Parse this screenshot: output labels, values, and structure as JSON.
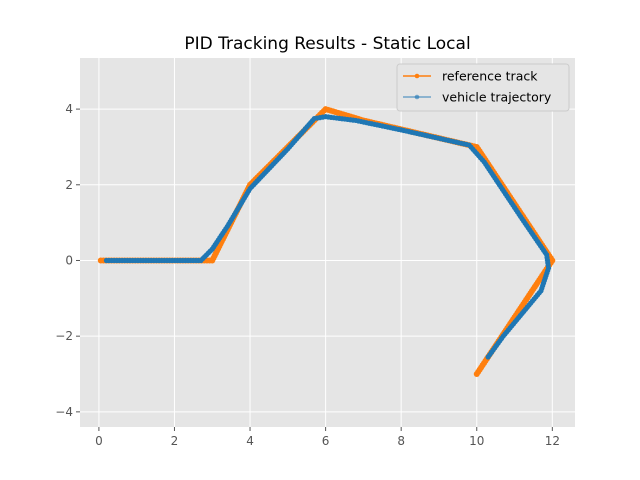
{
  "chart_data": {
    "type": "line",
    "title": "PID Tracking Results - Static Local",
    "xlabel": "",
    "ylabel": "",
    "xlim": [
      -0.5,
      12.6
    ],
    "ylim": [
      -4.4,
      5.35
    ],
    "xticks": [
      0,
      2,
      4,
      6,
      8,
      10,
      12
    ],
    "yticks": [
      -4,
      -2,
      0,
      2,
      4
    ],
    "xtick_labels": [
      "0",
      "2",
      "4",
      "6",
      "8",
      "10",
      "12"
    ],
    "ytick_labels": [
      "−4",
      "−2",
      "0",
      "2",
      "4"
    ],
    "grid": true,
    "legend_position": "top-right",
    "background": "#e5e5e5",
    "series": [
      {
        "name": "reference track",
        "color": "#ff7f0e",
        "marker": "o",
        "x": [
          0.05,
          3.0,
          4.0,
          6.0,
          7.0,
          10.0,
          12.0,
          10.0
        ],
        "y": [
          0.0,
          0.0,
          2.0,
          4.0,
          3.7,
          3.0,
          0.0,
          -3.0
        ]
      },
      {
        "name": "vehicle trajectory",
        "color": "#1f77b4",
        "marker": "o",
        "x": [
          0.2,
          2.7,
          3.0,
          3.4,
          4.0,
          5.0,
          5.7,
          6.0,
          6.8,
          8.0,
          9.8,
          10.2,
          10.6,
          11.2,
          11.85,
          11.9,
          11.7,
          11.2,
          10.7,
          10.3
        ],
        "y": [
          0.0,
          0.0,
          0.3,
          0.9,
          1.9,
          2.95,
          3.75,
          3.8,
          3.7,
          3.45,
          3.05,
          2.6,
          2.0,
          1.1,
          0.15,
          -0.2,
          -0.8,
          -1.4,
          -2.0,
          -2.55
        ]
      }
    ]
  }
}
